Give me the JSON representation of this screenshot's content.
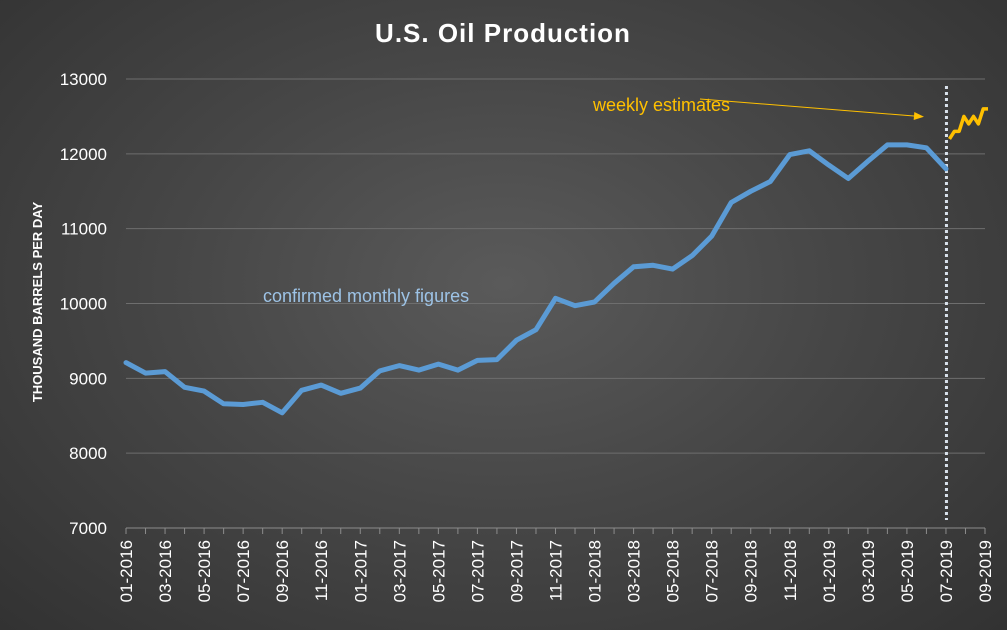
{
  "chart_data": {
    "type": "line",
    "title": "U.S. Oil Production",
    "xlabel": "",
    "ylabel": "THOUSAND BARRELS PER DAY",
    "ylim": [
      7000,
      13000
    ],
    "yticks": [
      "7000",
      "8000",
      "9000",
      "10000",
      "11000",
      "12000",
      "13000"
    ],
    "xtick_labels": [
      "01-2016",
      "03-2016",
      "05-2016",
      "07-2016",
      "09-2016",
      "11-2016",
      "01-2017",
      "03-2017",
      "05-2017",
      "07-2017",
      "09-2017",
      "11-2017",
      "01-2018",
      "03-2018",
      "05-2018",
      "07-2018",
      "09-2018",
      "11-2018",
      "01-2019",
      "03-2019",
      "05-2019",
      "07-2019",
      "09-2019"
    ],
    "grid": true,
    "series": [
      {
        "color": "#5b9bd5",
        "x": [
          "01-2016",
          "02-2016",
          "03-2016",
          "04-2016",
          "05-2016",
          "06-2016",
          "07-2016",
          "08-2016",
          "09-2016",
          "10-2016",
          "11-2016",
          "12-2016",
          "01-2017",
          "02-2017",
          "03-2017",
          "04-2017",
          "05-2017",
          "06-2017",
          "07-2017",
          "08-2017",
          "09-2017",
          "10-2017",
          "11-2017",
          "12-2017",
          "01-2018",
          "02-2018",
          "03-2018",
          "04-2018",
          "05-2018",
          "06-2018",
          "07-2018",
          "08-2018",
          "09-2018",
          "10-2018",
          "11-2018",
          "12-2018",
          "01-2019",
          "02-2019",
          "03-2019",
          "04-2019",
          "05-2019",
          "06-2019",
          "07-2019"
        ],
        "values": [
          9210,
          9070,
          9090,
          8880,
          8830,
          8660,
          8650,
          8680,
          8540,
          8840,
          8910,
          8800,
          8870,
          9100,
          9170,
          9110,
          9190,
          9110,
          9240,
          9250,
          9510,
          9650,
          10070,
          9970,
          10020,
          10270,
          10490,
          10510,
          10460,
          10640,
          10900,
          11350,
          11500,
          11630,
          11990,
          12040,
          11850,
          11670,
          11900,
          12120,
          12120,
          12080,
          11800
        ]
      },
      {
        "color": "#ffc000",
        "x_fraction_range": [
          0.0,
          1.0
        ],
        "values": [
          12200,
          12300,
          12300,
          12500,
          12400,
          12500,
          12400,
          12600,
          12600
        ]
      }
    ],
    "annotations": [
      {
        "text": "weekly estimates",
        "color": "#ffc000"
      },
      {
        "text": "confirmed monthly figures",
        "color": "#9dc3e6"
      }
    ]
  }
}
